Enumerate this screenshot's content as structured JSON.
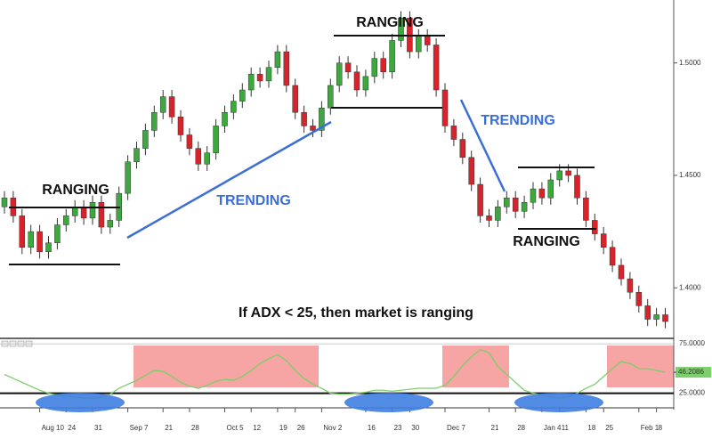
{
  "chart_data": [
    {
      "type": "candlestick",
      "categories": [
        null,
        null,
        null,
        null,
        "Aug 10",
        null,
        null,
        "24",
        null,
        null,
        "31",
        null,
        null,
        null,
        "Sep 7",
        null,
        null,
        null,
        "21",
        null,
        null,
        "28",
        null,
        null,
        null,
        "Oct 5",
        null,
        null,
        "12",
        null,
        null,
        "19",
        null,
        "26",
        null,
        null,
        "Nov 2",
        null,
        null,
        null,
        null,
        "16",
        null,
        null,
        "23",
        null,
        "30",
        null,
        null,
        null,
        "Dec 7",
        null,
        null,
        null,
        null,
        "21",
        null,
        null,
        "28",
        null,
        null,
        "Jan 4",
        null,
        "11",
        null,
        null,
        "18",
        null,
        "25",
        null,
        null,
        null,
        "Feb 1",
        null,
        "8",
        null
      ],
      "open": [
        1.436,
        1.44,
        1.432,
        1.418,
        1.425,
        1.416,
        1.42,
        1.428,
        1.432,
        1.436,
        1.431,
        1.438,
        1.427,
        1.43,
        1.442,
        1.456,
        1.462,
        1.47,
        1.478,
        1.485,
        1.476,
        1.468,
        1.462,
        1.455,
        1.46,
        1.472,
        1.478,
        1.483,
        1.488,
        1.495,
        1.492,
        1.498,
        1.505,
        1.49,
        1.478,
        1.472,
        1.47,
        1.48,
        1.49,
        1.5,
        1.496,
        1.488,
        1.494,
        1.502,
        1.496,
        1.51,
        1.52,
        1.505,
        1.512,
        1.508,
        1.488,
        1.472,
        1.466,
        1.458,
        1.446,
        1.432,
        1.43,
        1.436,
        1.44,
        1.434,
        1.438,
        1.444,
        1.44,
        1.448,
        1.452,
        1.45,
        1.44,
        1.43,
        1.424,
        1.418,
        1.41,
        1.404,
        1.398,
        1.392,
        1.386,
        1.388
      ],
      "high": [
        1.443,
        1.443,
        1.435,
        1.428,
        1.428,
        1.423,
        1.431,
        1.435,
        1.439,
        1.439,
        1.441,
        1.441,
        1.433,
        1.445,
        1.459,
        1.465,
        1.473,
        1.481,
        1.488,
        1.488,
        1.479,
        1.471,
        1.465,
        1.463,
        1.475,
        1.481,
        1.486,
        1.491,
        1.498,
        1.498,
        1.501,
        1.508,
        1.508,
        1.493,
        1.481,
        1.475,
        1.483,
        1.493,
        1.503,
        1.503,
        1.499,
        1.497,
        1.505,
        1.505,
        1.513,
        1.523,
        1.523,
        1.515,
        1.515,
        1.511,
        1.491,
        1.475,
        1.469,
        1.461,
        1.449,
        1.435,
        1.439,
        1.443,
        1.443,
        1.441,
        1.447,
        1.447,
        1.451,
        1.455,
        1.455,
        1.453,
        1.443,
        1.433,
        1.427,
        1.421,
        1.413,
        1.407,
        1.401,
        1.395,
        1.391,
        1.391
      ],
      "low": [
        1.433,
        1.429,
        1.415,
        1.415,
        1.413,
        1.413,
        1.417,
        1.425,
        1.429,
        1.428,
        1.428,
        1.424,
        1.424,
        1.427,
        1.439,
        1.453,
        1.459,
        1.467,
        1.475,
        1.473,
        1.465,
        1.459,
        1.452,
        1.452,
        1.457,
        1.469,
        1.475,
        1.48,
        1.485,
        1.489,
        1.489,
        1.495,
        1.487,
        1.475,
        1.469,
        1.467,
        1.467,
        1.477,
        1.487,
        1.493,
        1.485,
        1.485,
        1.491,
        1.493,
        1.493,
        1.507,
        1.502,
        1.502,
        1.505,
        1.485,
        1.469,
        1.463,
        1.455,
        1.443,
        1.429,
        1.427,
        1.427,
        1.433,
        1.431,
        1.431,
        1.435,
        1.437,
        1.437,
        1.445,
        1.447,
        1.437,
        1.427,
        1.421,
        1.415,
        1.407,
        1.401,
        1.395,
        1.389,
        1.383,
        1.383,
        1.382
      ],
      "close": [
        1.44,
        1.432,
        1.418,
        1.425,
        1.416,
        1.42,
        1.428,
        1.432,
        1.436,
        1.431,
        1.438,
        1.427,
        1.43,
        1.442,
        1.456,
        1.462,
        1.47,
        1.478,
        1.485,
        1.476,
        1.468,
        1.462,
        1.455,
        1.46,
        1.472,
        1.478,
        1.483,
        1.488,
        1.495,
        1.492,
        1.498,
        1.505,
        1.49,
        1.478,
        1.472,
        1.47,
        1.48,
        1.49,
        1.5,
        1.496,
        1.488,
        1.494,
        1.502,
        1.496,
        1.51,
        1.52,
        1.505,
        1.512,
        1.508,
        1.488,
        1.472,
        1.466,
        1.458,
        1.446,
        1.432,
        1.43,
        1.436,
        1.44,
        1.434,
        1.438,
        1.444,
        1.44,
        1.448,
        1.452,
        1.45,
        1.44,
        1.43,
        1.424,
        1.418,
        1.41,
        1.404,
        1.398,
        1.392,
        1.386,
        1.388,
        1.385
      ],
      "up_color": "#3da83d",
      "down_color": "#d9232a",
      "ylim": [
        1.3775,
        1.528
      ],
      "yticks": [
        {
          "value": 1.4,
          "label": "1.4000"
        },
        {
          "value": 1.45,
          "label": "1.4500"
        },
        {
          "value": 1.5,
          "label": "1.5000"
        }
      ],
      "annotations": [
        "RANGING",
        "TRENDING",
        "RANGING",
        "TRENDING",
        "RANGING",
        "If ADX < 25, then market is ranging"
      ]
    },
    {
      "type": "line",
      "values": [
        44,
        40,
        36,
        32,
        28,
        25,
        23,
        22,
        21,
        20,
        20,
        21,
        24,
        30,
        34,
        38,
        43,
        48,
        47,
        42,
        36,
        32,
        30,
        33,
        37,
        39,
        38,
        42,
        48,
        55,
        60,
        64,
        58,
        48,
        40,
        34,
        30,
        25,
        24,
        24,
        25,
        26,
        28,
        28,
        27,
        28,
        29,
        30,
        30,
        30,
        33,
        42,
        53,
        62,
        69,
        66,
        52,
        44,
        36,
        28,
        25,
        23,
        21,
        20,
        21,
        25,
        30,
        34,
        42,
        50,
        57,
        55,
        50,
        50,
        48,
        46.2086
      ],
      "color": "#7ccf6a",
      "ylim": [
        11.1,
        77.8
      ],
      "yticks": [
        {
          "value": 75,
          "label": "75.0000"
        },
        46.2086,
        {
          "value": 25,
          "label": "25.0000"
        }
      ]
    }
  ]
}
